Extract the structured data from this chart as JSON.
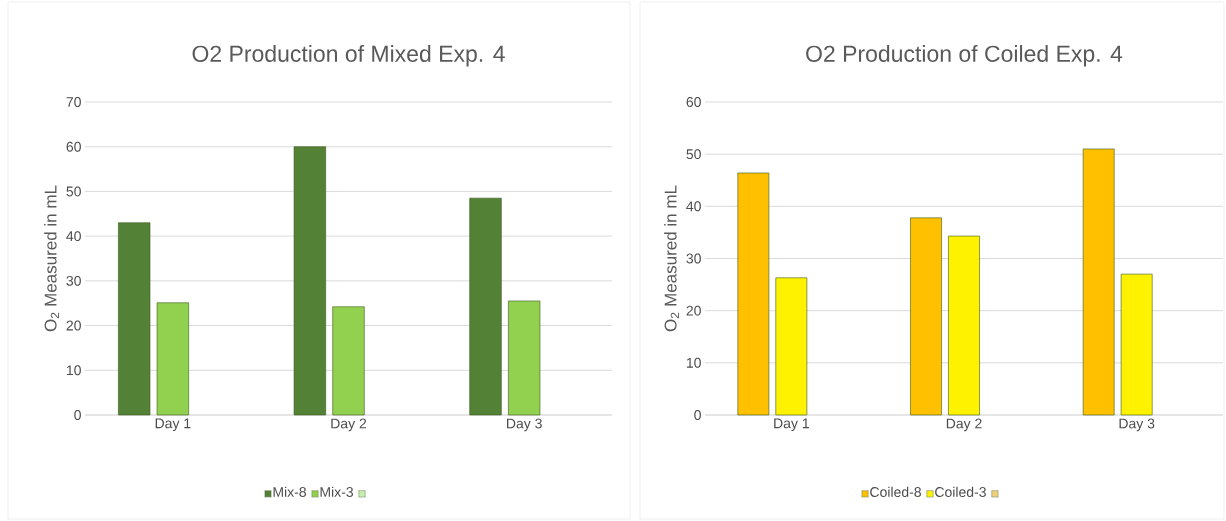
{
  "chart_data": [
    {
      "type": "bar",
      "title": "O2 Production of Mixed Exp. 4",
      "ylabel": "O$_{2}$ Measured in mL",
      "categories": [
        "Day 1",
        "Day 2",
        "Day 3"
      ],
      "series": [
        {
          "name": "Mix-8",
          "color": "#538135",
          "values": [
            43,
            60,
            48.5
          ]
        },
        {
          "name": "Mix-3",
          "color": "#92d050",
          "values": [
            25.1,
            24.2,
            25.5
          ]
        },
        {
          "color": "#c6efb0",
          "values": [
            null,
            null,
            null
          ]
        }
      ],
      "ylim": [
        0,
        70
      ],
      "yticks": [
        0,
        10,
        20,
        30,
        40,
        50,
        60,
        70
      ],
      "grid": "y",
      "legend": "bottom"
    },
    {
      "type": "bar",
      "title": "O2 Production of Coiled Exp. 4",
      "ylabel": "O$_{2}$ Measured in mL",
      "categories": [
        "Day 1",
        "Day 2",
        "Day 3"
      ],
      "series": [
        {
          "name": "Coiled-8",
          "color": "#ffc000",
          "values": [
            46.4,
            37.8,
            51
          ]
        },
        {
          "name": "Coiled-3",
          "color": "#fff200",
          "values": [
            26.3,
            34.3,
            27
          ]
        },
        {
          "color": "#f0d07a",
          "values": [
            null,
            null,
            null
          ]
        }
      ],
      "ylim": [
        0,
        60
      ],
      "yticks": [
        0,
        10,
        20,
        30,
        40,
        50,
        60
      ],
      "grid": "y",
      "legend": "bottom"
    }
  ]
}
